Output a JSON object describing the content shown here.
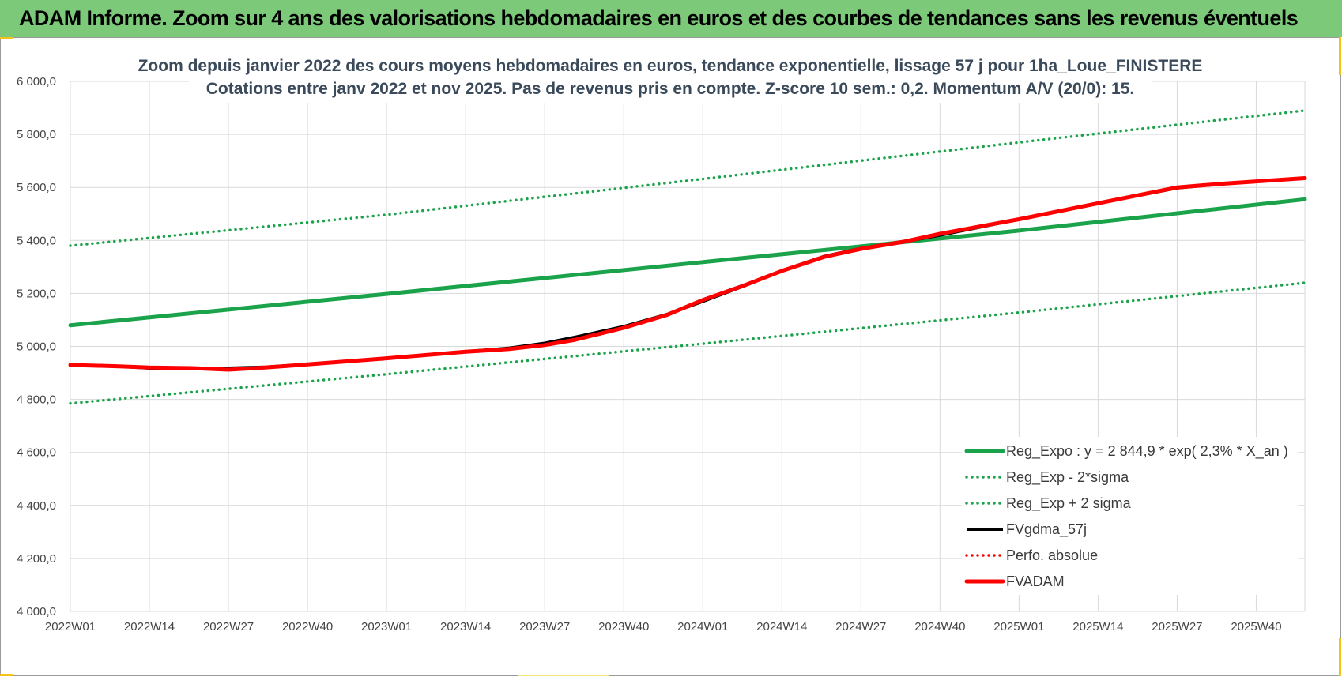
{
  "banner": {
    "title": "ADAM Informe. Zoom sur 4 ans des valorisations hebdomadaires en euros et des courbes de tendances sans les revenus éventuels"
  },
  "chart_data": {
    "type": "line",
    "title_line1": "Zoom depuis janvier 2022 des cours moyens hebdomadaires en euros, tendance exponentielle, lissage 57 j pour 1ha_Loue_FINISTERE",
    "title_line2": "Cotations entre janv 2022 et nov 2025. Pas de revenus pris en compte. Z-score 10 sem.: 0,2. Momentum A/V (20/0): 15.",
    "ylim": [
      4000,
      6000
    ],
    "yticks": [
      "6 000,0",
      "5 800,0",
      "5 600,0",
      "5 400,0",
      "5 200,0",
      "5 000,0",
      "4 800,0",
      "4 600,0",
      "4 400,0",
      "4 200,0",
      "4 000,0"
    ],
    "yticks_values": [
      6000,
      5800,
      5600,
      5400,
      5200,
      5000,
      4800,
      4600,
      4400,
      4200,
      4000
    ],
    "xlim_weeks": [
      0,
      203
    ],
    "xticks": [
      "2022W01",
      "2022W14",
      "2022W27",
      "2022W40",
      "2023W01",
      "2023W14",
      "2023W27",
      "2023W40",
      "2024W01",
      "2024W14",
      "2024W27",
      "2024W40",
      "2025W01",
      "2025W14",
      "2025W27",
      "2025W40"
    ],
    "grid": true,
    "legend_position": "bottom-right",
    "series": [
      {
        "name": "Reg_Expo : y = 2 844,9 * exp( 2,3% * X_an )",
        "color": "#1aa34a",
        "style": "solid-thick",
        "points": [
          [
            0,
            5080
          ],
          [
            52,
            5198
          ],
          [
            104,
            5318
          ],
          [
            156,
            5437
          ],
          [
            203,
            5555
          ]
        ]
      },
      {
        "name": "Reg_Exp - 2*sigma",
        "color": "#1aa34a",
        "style": "dotted",
        "points": [
          [
            0,
            4785
          ],
          [
            52,
            4895
          ],
          [
            104,
            5010
          ],
          [
            156,
            5128
          ],
          [
            203,
            5240
          ]
        ]
      },
      {
        "name": "Reg_Exp + 2 sigma",
        "color": "#1aa34a",
        "style": "dotted",
        "points": [
          [
            0,
            5380
          ],
          [
            52,
            5497
          ],
          [
            104,
            5632
          ],
          [
            156,
            5770
          ],
          [
            203,
            5890
          ]
        ]
      },
      {
        "name": "FVgdma_57j",
        "color": "#000000",
        "style": "solid",
        "points": [
          [
            0,
            4930
          ],
          [
            8,
            4925
          ],
          [
            13,
            4918
          ],
          [
            20,
            4916
          ],
          [
            26,
            4918
          ],
          [
            32,
            4922
          ],
          [
            39,
            4932
          ],
          [
            52,
            4955
          ],
          [
            65,
            4980
          ],
          [
            72,
            4993
          ],
          [
            78,
            5012
          ],
          [
            83,
            5035
          ],
          [
            91,
            5075
          ],
          [
            98,
            5120
          ],
          [
            104,
            5170
          ],
          [
            111,
            5230
          ],
          [
            117,
            5285
          ],
          [
            124,
            5340
          ],
          [
            130,
            5370
          ],
          [
            137,
            5395
          ],
          [
            143,
            5420
          ],
          [
            156,
            5480
          ],
          [
            169,
            5540
          ],
          [
            182,
            5598
          ],
          [
            190,
            5615
          ],
          [
            203,
            5635
          ]
        ]
      },
      {
        "name": "Perfo. absolue",
        "color": "#ff0000",
        "style": "dotted",
        "points": [
          [
            0,
            4930
          ],
          [
            8,
            4925
          ],
          [
            13,
            4920
          ],
          [
            20,
            4918
          ],
          [
            26,
            4912
          ],
          [
            32,
            4920
          ],
          [
            39,
            4932
          ],
          [
            52,
            4955
          ],
          [
            65,
            4980
          ],
          [
            72,
            4990
          ],
          [
            78,
            5005
          ],
          [
            83,
            5025
          ],
          [
            91,
            5070
          ],
          [
            98,
            5118
          ],
          [
            104,
            5175
          ],
          [
            111,
            5232
          ],
          [
            117,
            5285
          ],
          [
            124,
            5338
          ],
          [
            130,
            5368
          ],
          [
            137,
            5395
          ],
          [
            143,
            5425
          ],
          [
            156,
            5480
          ],
          [
            169,
            5540
          ],
          [
            182,
            5600
          ],
          [
            190,
            5615
          ],
          [
            203,
            5635
          ]
        ]
      },
      {
        "name": "FVADAM",
        "color": "#ff0000",
        "style": "solid-thick",
        "points": [
          [
            0,
            4930
          ],
          [
            8,
            4925
          ],
          [
            13,
            4920
          ],
          [
            20,
            4918
          ],
          [
            26,
            4912
          ],
          [
            32,
            4920
          ],
          [
            39,
            4932
          ],
          [
            52,
            4955
          ],
          [
            65,
            4980
          ],
          [
            72,
            4990
          ],
          [
            78,
            5005
          ],
          [
            83,
            5025
          ],
          [
            91,
            5070
          ],
          [
            98,
            5118
          ],
          [
            104,
            5175
          ],
          [
            111,
            5232
          ],
          [
            117,
            5285
          ],
          [
            124,
            5338
          ],
          [
            130,
            5368
          ],
          [
            137,
            5395
          ],
          [
            143,
            5425
          ],
          [
            156,
            5480
          ],
          [
            169,
            5540
          ],
          [
            182,
            5600
          ],
          [
            190,
            5615
          ],
          [
            203,
            5635
          ]
        ]
      }
    ]
  }
}
